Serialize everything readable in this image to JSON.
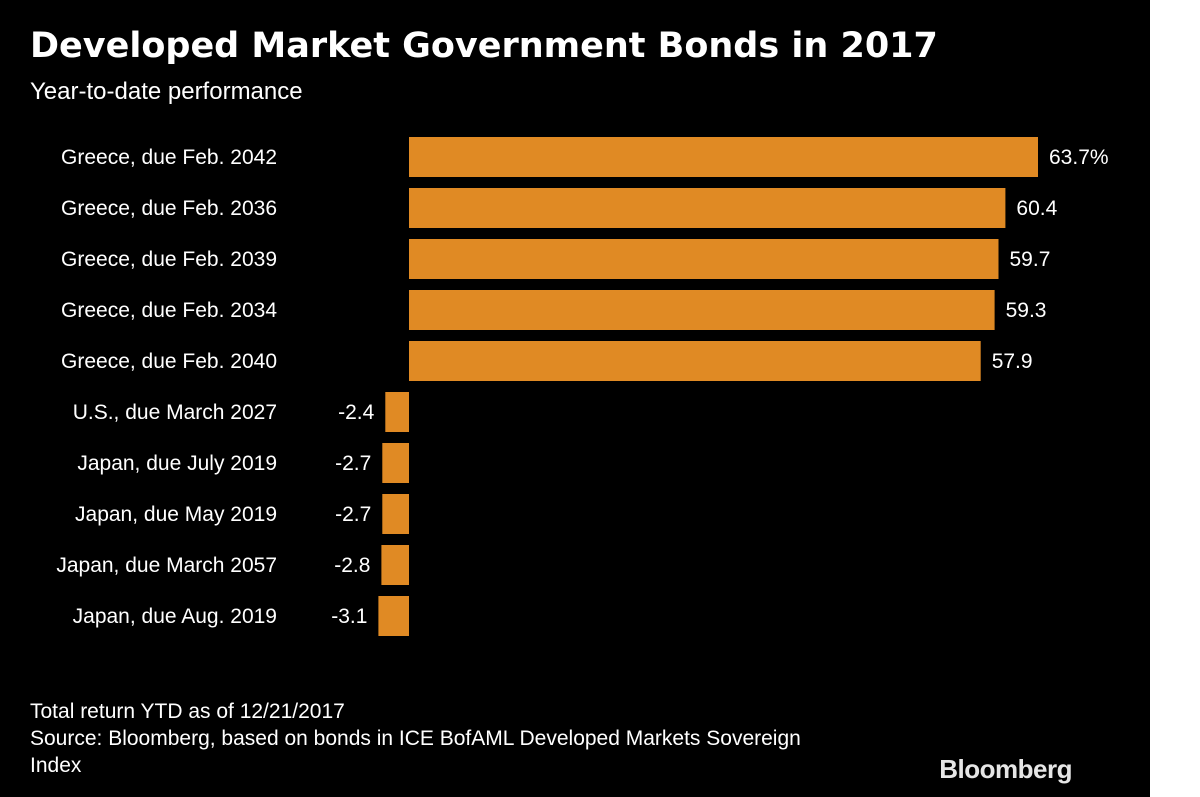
{
  "title": "Developed Market Government Bonds in 2017",
  "subtitle": "Year-to-date performance",
  "footnote": {
    "line1": "Total return YTD as of 12/21/2017",
    "line2": "Source: Bloomberg, based on bonds in ICE BofAML Developed Markets Sovereign",
    "line3": "Index"
  },
  "logo": "Bloomberg",
  "colors": {
    "background": "#000000",
    "bar": "#e08a24",
    "text": "#ffffff"
  },
  "chart_data": {
    "type": "bar",
    "orientation": "horizontal",
    "categories": [
      "Greece, due Feb. 2042",
      "Greece, due Feb. 2036",
      "Greece, due Feb. 2039",
      "Greece, due Feb. 2034",
      "Greece, due Feb. 2040",
      "U.S., due March 2027",
      "Japan, due July 2019",
      "Japan, due May 2019",
      "Japan, due March 2057",
      "Japan, due Aug. 2019"
    ],
    "values": [
      63.7,
      60.4,
      59.7,
      59.3,
      57.9,
      -2.4,
      -2.7,
      -2.7,
      -2.8,
      -3.1
    ],
    "value_labels": [
      "63.7%",
      "60.4",
      "59.7",
      "59.3",
      "57.9",
      "-2.4",
      "-2.7",
      "-2.7",
      "-2.8",
      "-3.1"
    ],
    "xlim": [
      -3.1,
      63.7
    ],
    "grid": false,
    "legend": "none"
  }
}
